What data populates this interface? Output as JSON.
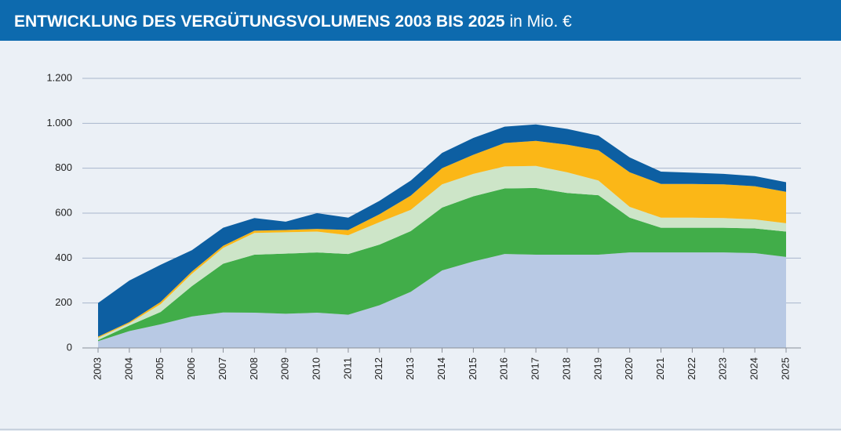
{
  "chart_data": {
    "type": "stacked_area",
    "title": "ENTWICKLUNG DES VERGÜTUNGSVOLUMENS 2003 BIS 2025",
    "subtitle": "in Mio. €",
    "categories": [
      "2003",
      "2004",
      "2005",
      "2006",
      "2007",
      "2008",
      "2009",
      "2010",
      "2011",
      "2012",
      "2013",
      "2014",
      "2015",
      "2016",
      "2017",
      "2018",
      "2019",
      "2020",
      "2021",
      "2022",
      "2023",
      "2024",
      "2025"
    ],
    "series": [
      {
        "color": "#b8c9e4",
        "values": [
          30,
          75,
          105,
          140,
          158,
          157,
          152,
          157,
          148,
          190,
          250,
          345,
          385,
          418,
          415,
          415,
          415,
          425,
          425,
          425,
          425,
          422,
          405
        ]
      },
      {
        "color": "#41ad49",
        "values": [
          5,
          25,
          55,
          135,
          217,
          258,
          268,
          268,
          270,
          270,
          270,
          280,
          290,
          292,
          297,
          275,
          265,
          155,
          110,
          110,
          110,
          110,
          113
        ]
      },
      {
        "color": "#cde5c8",
        "values": [
          10,
          10,
          35,
          55,
          70,
          97,
          95,
          93,
          84,
          100,
          95,
          103,
          100,
          98,
          98,
          92,
          65,
          48,
          45,
          45,
          43,
          40,
          37
        ]
      },
      {
        "color": "#fbb717",
        "values": [
          5,
          5,
          10,
          10,
          10,
          10,
          10,
          12,
          23,
          35,
          63,
          72,
          85,
          104,
          112,
          123,
          135,
          154,
          150,
          150,
          150,
          148,
          140
        ]
      },
      {
        "color": "#0d5fa2",
        "values": [
          150,
          185,
          165,
          95,
          80,
          56,
          37,
          70,
          55,
          60,
          67,
          68,
          75,
          73,
          73,
          70,
          65,
          66,
          55,
          50,
          47,
          45,
          43
        ]
      }
    ],
    "ylim": [
      0,
      1200
    ],
    "yticks": [
      0,
      200,
      400,
      600,
      800,
      {
        "value": 1000,
        "label": "1.000"
      },
      {
        "value": 1200,
        "label": "1.200"
      }
    ],
    "grid": true
  }
}
